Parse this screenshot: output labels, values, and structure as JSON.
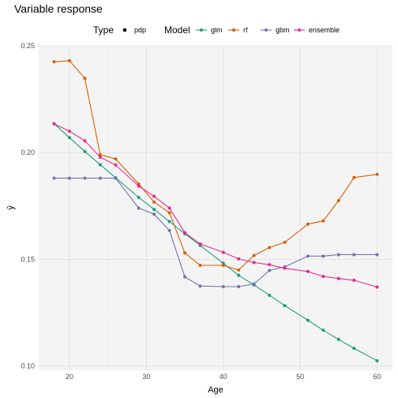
{
  "chart_data": {
    "type": "line",
    "title": "Variable response",
    "xlabel": "Age",
    "ylabel": "ŷ",
    "xlim": [
      16,
      62
    ],
    "ylim": [
      0.098,
      0.25
    ],
    "xticks": [
      20,
      30,
      40,
      50,
      60
    ],
    "yticks": [
      0.1,
      0.15,
      0.2,
      0.25
    ],
    "ytick_labels": [
      "0.10",
      "0.15",
      "0.20",
      "0.25"
    ],
    "grid": true,
    "background": "#f4f4f4",
    "legend_placement": "top",
    "legend": {
      "type_title": "Type",
      "type_entry": "pdp",
      "model_title": "Model"
    },
    "x": [
      18,
      20,
      22,
      24,
      26,
      29,
      31,
      33,
      35,
      37,
      40,
      42,
      44,
      46,
      48,
      51,
      53,
      55,
      57,
      60
    ],
    "series": [
      {
        "name": "glm",
        "color": "#1b9e77",
        "values": [
          0.2135,
          0.207,
          0.2005,
          0.1943,
          0.1882,
          0.179,
          0.1734,
          0.1677,
          0.162,
          0.1565,
          0.1482,
          0.1425,
          0.138,
          0.1332,
          0.1283,
          0.1215,
          0.1168,
          0.1125,
          0.1083,
          0.1025
        ]
      },
      {
        "name": "rf",
        "color": "#d95f02",
        "values": [
          0.2425,
          0.243,
          0.2348,
          0.199,
          0.197,
          0.1853,
          0.1768,
          0.1718,
          0.153,
          0.1472,
          0.1472,
          0.145,
          0.1518,
          0.1555,
          0.158,
          0.1665,
          0.168,
          0.1775,
          0.1883,
          0.1898
        ]
      },
      {
        "name": "gbm",
        "color": "#7570b3",
        "values": [
          0.188,
          0.188,
          0.188,
          0.188,
          0.188,
          0.174,
          0.1712,
          0.1635,
          0.1418,
          0.1375,
          0.1372,
          0.1372,
          0.1385,
          0.1448,
          0.1465,
          0.1515,
          0.1515,
          0.1522,
          0.1522,
          0.1522
        ]
      },
      {
        "name": "ensemble",
        "color": "#e7298a",
        "values": [
          0.2135,
          0.21,
          0.2055,
          0.1978,
          0.1942,
          0.1843,
          0.1795,
          0.174,
          0.1625,
          0.1572,
          0.1533,
          0.1502,
          0.1485,
          0.1475,
          0.1458,
          0.1443,
          0.142,
          0.141,
          0.1402,
          0.137
        ]
      }
    ]
  }
}
